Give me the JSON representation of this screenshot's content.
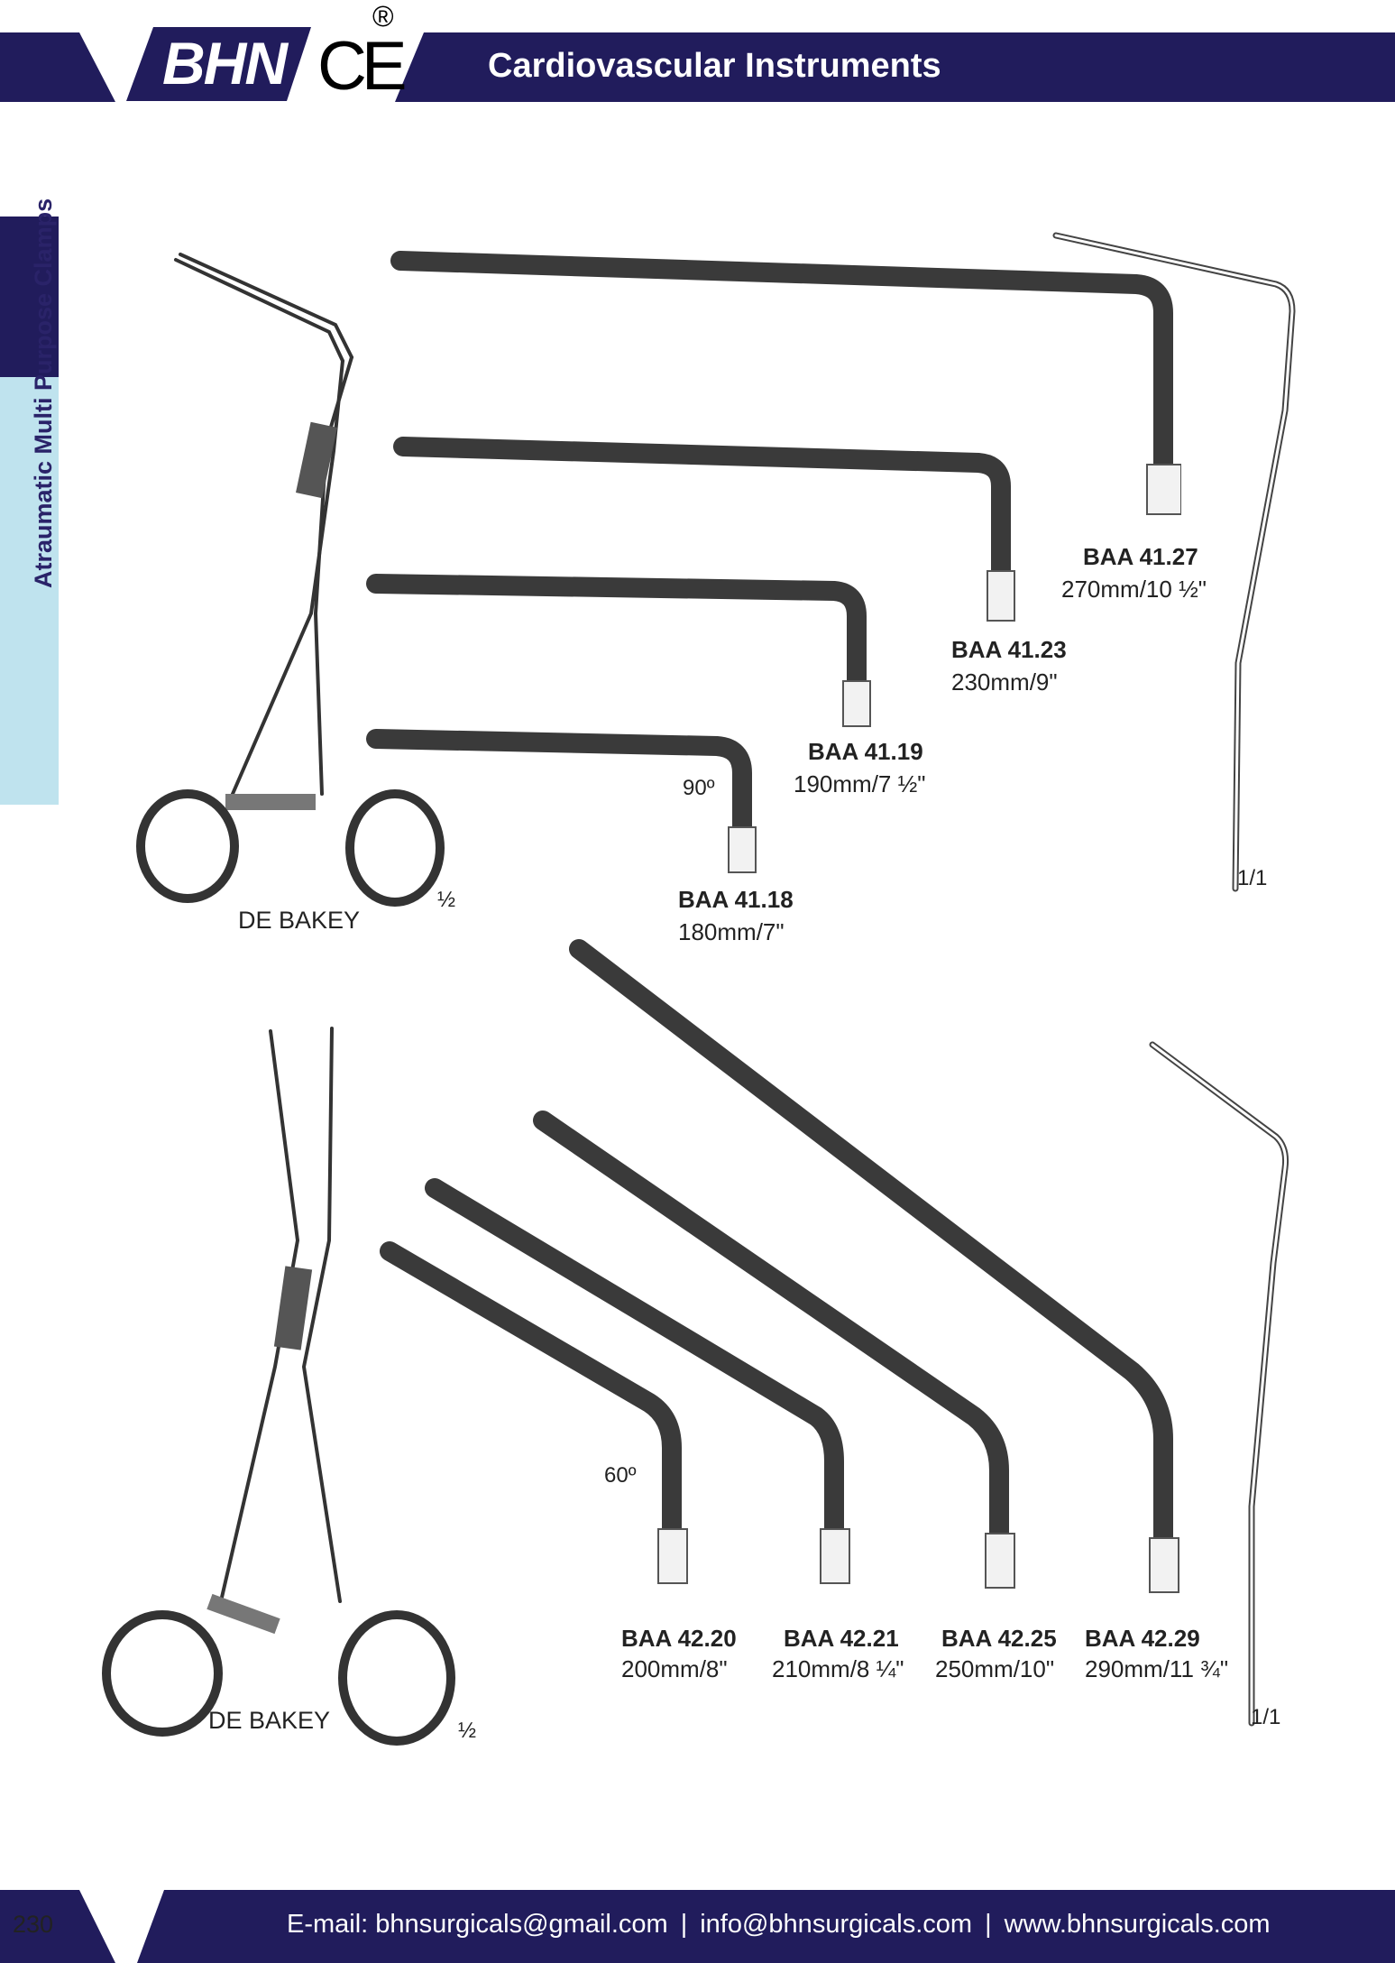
{
  "header": {
    "brand": "BHN",
    "certification_mark": "CE",
    "registered_mark": "®",
    "title": "Cardiovascular Instruments"
  },
  "side_tab": {
    "label": "Atraumatic Multi Purpose Clamps"
  },
  "section_90": {
    "instrument_name": "DE BAKEY",
    "scale_label": "½",
    "profile_scale_label": "1/1",
    "angle_label": "90º",
    "items": [
      {
        "code": "BAA 41.27",
        "size": "270mm/10 ½\""
      },
      {
        "code": "BAA 41.23",
        "size": "230mm/9\""
      },
      {
        "code": "BAA 41.19",
        "size": "190mm/7 ½\""
      },
      {
        "code": "BAA 41.18",
        "size": "180mm/7\""
      }
    ]
  },
  "section_60": {
    "instrument_name": "DE BAKEY",
    "scale_label": "½",
    "profile_scale_label": "1/1",
    "angle_label": "60º",
    "items": [
      {
        "code": "BAA 42.20",
        "size": "200mm/8\""
      },
      {
        "code": "BAA 42.21",
        "size": "210mm/8 ¼\""
      },
      {
        "code": "BAA 42.25",
        "size": "250mm/10\""
      },
      {
        "code": "BAA 42.29",
        "size": "290mm/11 ¾\""
      }
    ]
  },
  "footer": {
    "page_number": "230",
    "email_label": "E-mail: bhnsurgicals@gmail.com",
    "separator": "|",
    "email2": "info@bhnsurgicals.com",
    "website": "www.bhnsurgicals.com"
  },
  "colors": {
    "navy": "#211c5c",
    "side_tab_light": "#bfe3ee",
    "side_text": "#2a2369",
    "metal": "#555555"
  }
}
